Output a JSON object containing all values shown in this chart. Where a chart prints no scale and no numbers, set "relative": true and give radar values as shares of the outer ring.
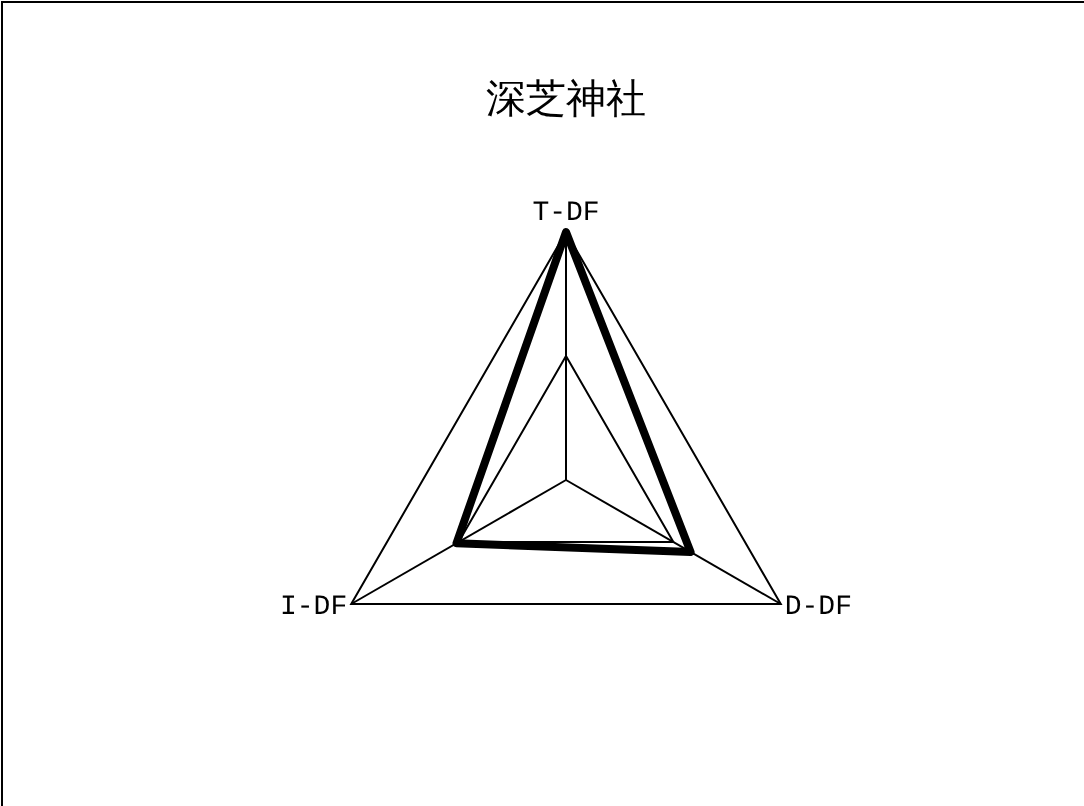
{
  "chart_data": {
    "type": "radar",
    "title": "深芝神社",
    "relative": true,
    "grid": true,
    "categories": [
      "T-DF",
      "D-DF",
      "I-DF"
    ],
    "series": [
      {
        "color": "#000000",
        "values": [
          1,
          0.58,
          0.51
        ]
      }
    ]
  }
}
